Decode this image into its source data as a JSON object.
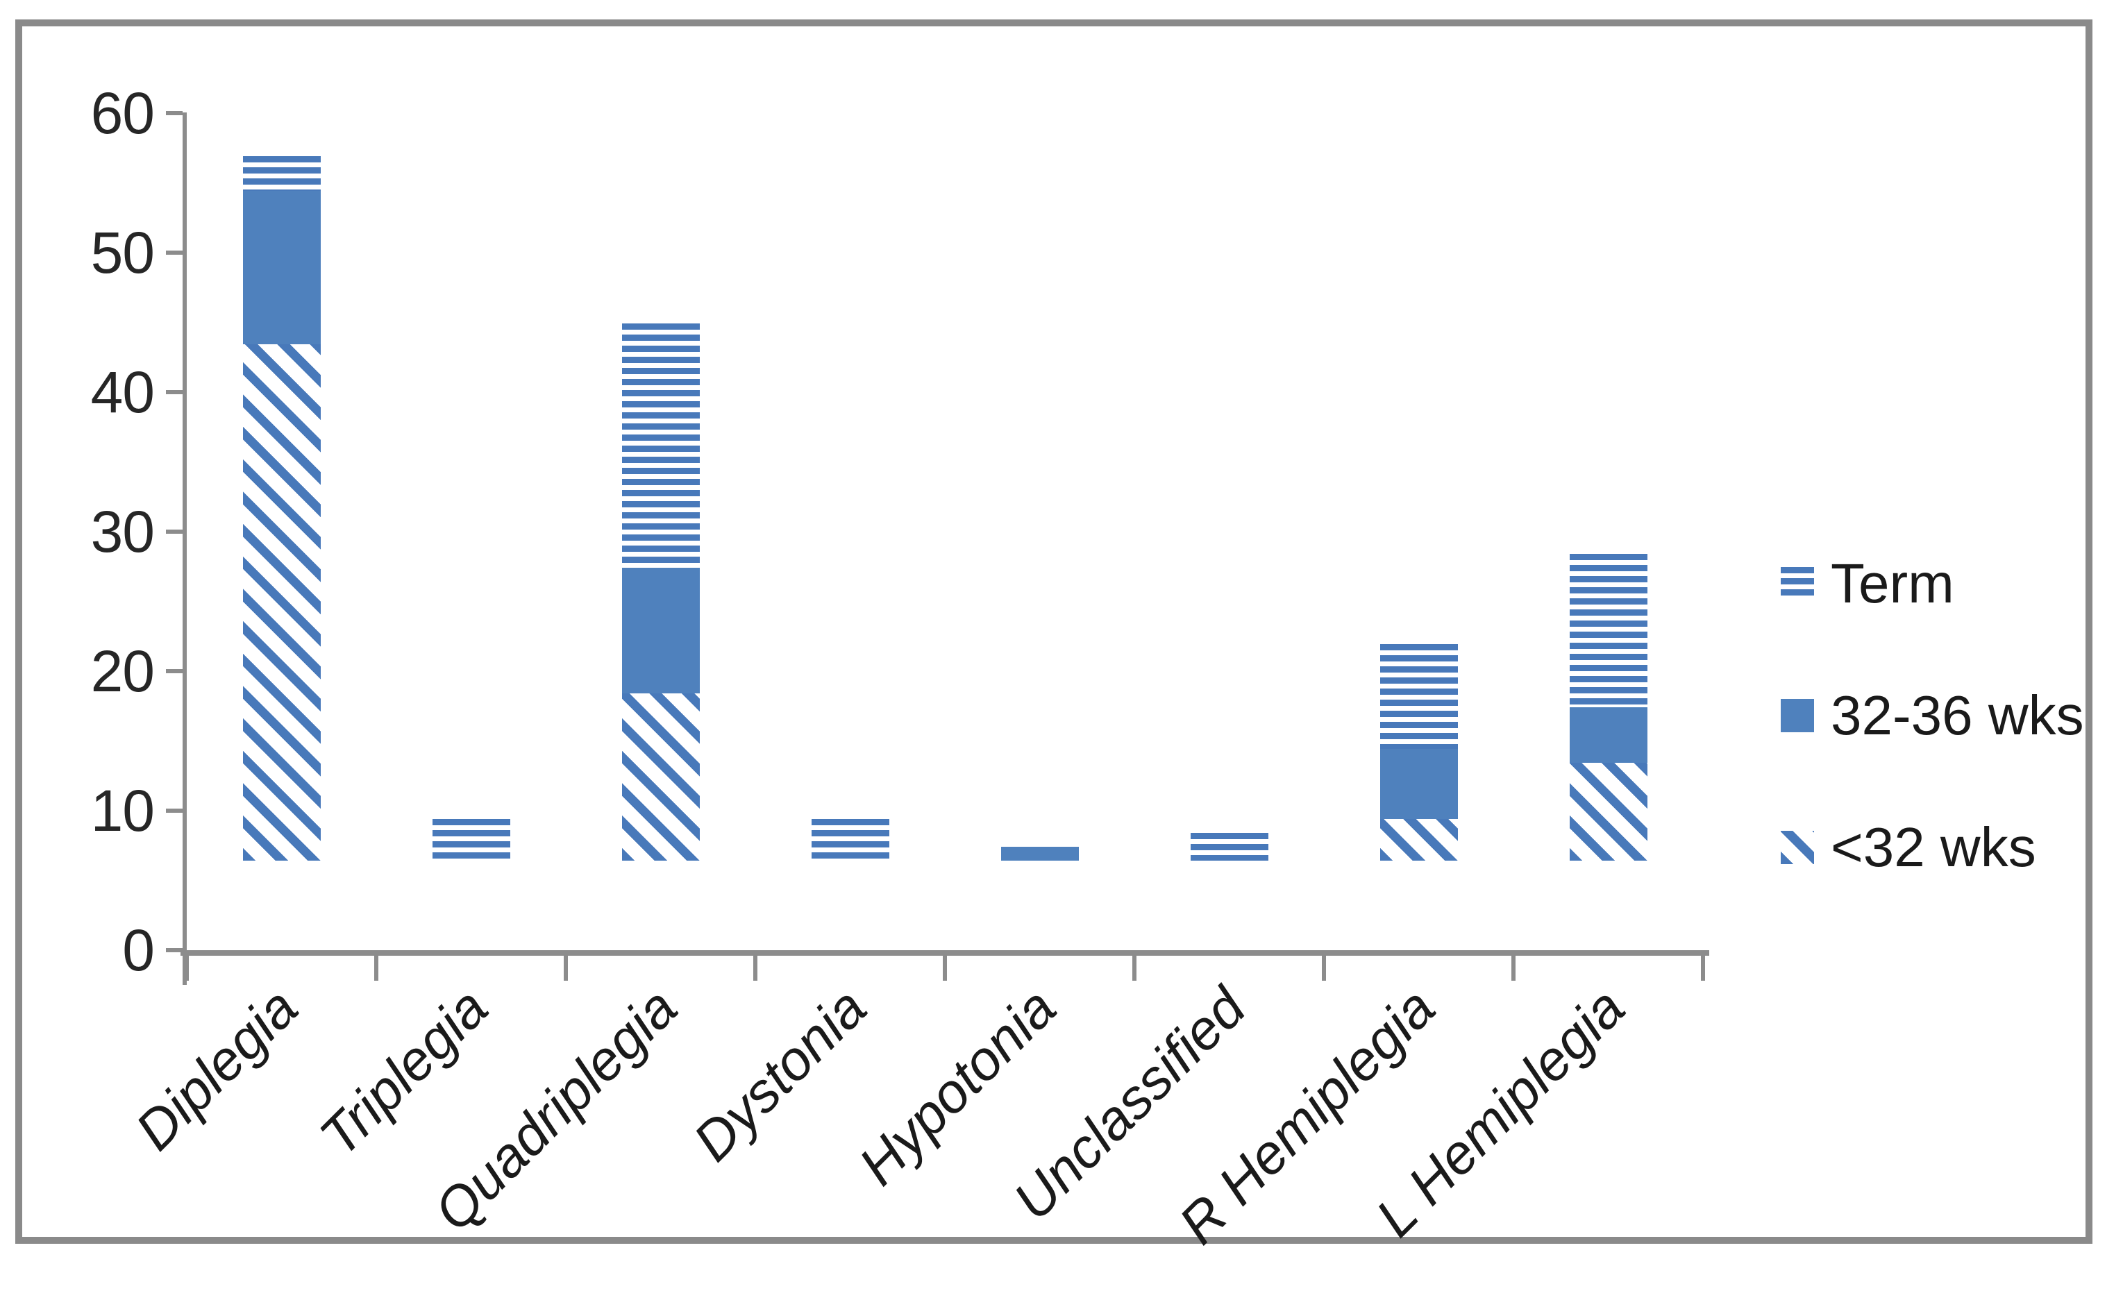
{
  "figure": {
    "background": "#ffffff",
    "border_color": "#8a8a8a"
  },
  "colors": {
    "series_blue": "#4f81bd",
    "axis_gray": "#8c8c8c",
    "tick_label_color": "#262626",
    "label_color": "#1a1a1a"
  },
  "legend": {
    "position": "right",
    "items": [
      {
        "label": "Term",
        "swatch": "horizontal-stripes-icon"
      },
      {
        "label": "32-36 wks",
        "swatch": "solid-square-icon"
      },
      {
        "label": "<32 wks",
        "swatch": "diagonal-stripes-icon"
      }
    ]
  },
  "chart_data": {
    "type": "bar",
    "stacked": true,
    "title": "",
    "xlabel": "",
    "ylabel": "",
    "grid": false,
    "ylim": [
      0,
      60
    ],
    "yticks": [
      0,
      10,
      20,
      30,
      40,
      50,
      60
    ],
    "categories": [
      "Diplegia",
      "Triplegia",
      "Quadriplegia",
      "Dystonia",
      "Hypotonia",
      "Unclassified",
      "R Hemiplegia",
      "L Hemiplegia"
    ],
    "series": [
      {
        "name": "<32 wks",
        "pattern": "diagonal-stripes",
        "values": [
          37,
          0,
          12,
          0,
          0,
          0,
          3,
          7
        ]
      },
      {
        "name": "32-36 wks",
        "pattern": "solid",
        "values": [
          11,
          0,
          9,
          0,
          1,
          0,
          5,
          4
        ]
      },
      {
        "name": "Term",
        "pattern": "horizontal-stripes",
        "values": [
          2.5,
          3,
          17.5,
          3,
          0,
          2,
          7.5,
          11
        ]
      }
    ],
    "totals": [
      50.5,
      3,
      38.5,
      3,
      1,
      2,
      15.5,
      22
    ],
    "legend_order_top_to_bottom": [
      "Term",
      "32-36 wks",
      "<32 wks"
    ]
  }
}
